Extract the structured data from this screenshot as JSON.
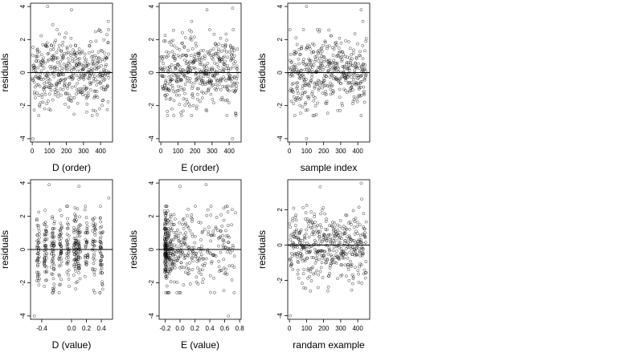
{
  "figure": {
    "layout": "2x3 grid",
    "background": "#ffffff",
    "point_color": "#000000",
    "reference_line": "y = 0",
    "marker": "open circle"
  },
  "chart_data": [
    {
      "type": "scatter",
      "xlabel": "D (order)",
      "ylabel": "residuals",
      "xticks": [
        0,
        100,
        200,
        300,
        400
      ],
      "yticks": [
        -4,
        -2,
        0,
        2,
        4
      ],
      "xlim": [
        -10,
        470
      ],
      "ylim": [
        -4.2,
        4.2
      ],
      "grid": false,
      "hline": 0,
      "points_described": {
        "n": 450,
        "x_range": [
          1,
          450
        ],
        "y_center": 0,
        "y_spread_sd": 1.1,
        "outliers": [
          [
            5,
            -4.0
          ],
          [
            90,
            4.0
          ],
          [
            230,
            3.8
          ],
          [
            445,
            3.1
          ],
          [
            120,
            2.9
          ]
        ]
      }
    },
    {
      "type": "scatter",
      "xlabel": "E (order)",
      "ylabel": "residuals",
      "xticks": [
        0,
        100,
        200,
        300,
        400
      ],
      "yticks": [
        -4,
        -2,
        0,
        2,
        4
      ],
      "xlim": [
        -10,
        470
      ],
      "ylim": [
        -4.2,
        4.2
      ],
      "grid": false,
      "hline": 0,
      "points_described": {
        "n": 450,
        "x_range": [
          1,
          450
        ],
        "y_center": 0,
        "y_spread_sd": 1.1,
        "outliers": [
          [
            420,
            -4.0
          ],
          [
            270,
            3.8
          ],
          [
            420,
            3.9
          ],
          [
            180,
            3.1
          ]
        ]
      }
    },
    {
      "type": "scatter",
      "xlabel": "sample index",
      "ylabel": "residuals",
      "xticks": [
        0,
        100,
        200,
        300,
        400
      ],
      "yticks": [
        -4,
        -2,
        0,
        2,
        4
      ],
      "xlim": [
        -10,
        470
      ],
      "ylim": [
        -4.2,
        4.2
      ],
      "grid": false,
      "hline": 0,
      "points_described": {
        "n": 450,
        "x_range": [
          1,
          450
        ],
        "y_center": 0,
        "y_spread_sd": 1.1,
        "outliers": [
          [
            100,
            -4.0
          ],
          [
            100,
            4.0
          ],
          [
            420,
            3.8
          ],
          [
            430,
            3.1
          ]
        ]
      }
    },
    {
      "type": "scatter",
      "xlabel": "D (value)",
      "ylabel": "residuals",
      "xticks": [
        -0.4,
        0.0,
        0.2,
        0.4
      ],
      "xtick_labels": [
        "-0.4",
        "0.0",
        "0.2",
        "0.4"
      ],
      "yticks": [
        -4,
        -2,
        0,
        2,
        4
      ],
      "xlim": [
        -0.55,
        0.55
      ],
      "ylim": [
        -4.2,
        4.2
      ],
      "grid": false,
      "hline": 0,
      "points_described": {
        "n": 450,
        "x_clusters": [
          -0.45,
          -0.35,
          -0.25,
          -0.15,
          -0.05,
          0.05,
          0.1,
          0.2,
          0.3,
          0.4
        ],
        "y_center": 0,
        "y_spread_sd": 1.1,
        "outliers": [
          [
            -0.5,
            -4.0
          ],
          [
            -0.3,
            3.9
          ],
          [
            0.1,
            3.8
          ],
          [
            0.5,
            3.1
          ]
        ]
      }
    },
    {
      "type": "scatter",
      "xlabel": "E (value)",
      "ylabel": "residuals",
      "xticks": [
        -0.2,
        0.0,
        0.2,
        0.4,
        0.6,
        0.8
      ],
      "xtick_labels": [
        "-0.2",
        "0.0",
        "0.2",
        "0.4",
        "0.6",
        "0.8"
      ],
      "yticks": [
        -4,
        -2,
        0,
        2,
        4
      ],
      "xlim": [
        -0.28,
        0.82
      ],
      "ylim": [
        -4.2,
        4.2
      ],
      "grid": false,
      "hline": 0,
      "points_described": {
        "n": 450,
        "dense_near_x": -0.2,
        "y_center": 0,
        "y_spread_sd": 1.1,
        "outliers": [
          [
            0.65,
            -4.0
          ],
          [
            0.35,
            3.9
          ],
          [
            0.0,
            3.8
          ],
          [
            0.7,
            2.4
          ]
        ]
      }
    },
    {
      "type": "scatter",
      "xlabel": "randam example",
      "ylabel": "residuals",
      "xticks": [
        0,
        100,
        200,
        300,
        400
      ],
      "yticks": [
        -4,
        -2,
        0,
        2
      ],
      "xlim": [
        -10,
        470
      ],
      "ylim": [
        -4.2,
        3.7
      ],
      "grid": false,
      "hline": 0,
      "points_described": {
        "n": 450,
        "x_range": [
          1,
          450
        ],
        "y_center": 0,
        "y_spread_sd": 1.0,
        "outliers": [
          [
            5,
            -4.0
          ],
          [
            420,
            3.5
          ],
          [
            180,
            3.3
          ]
        ]
      }
    }
  ]
}
